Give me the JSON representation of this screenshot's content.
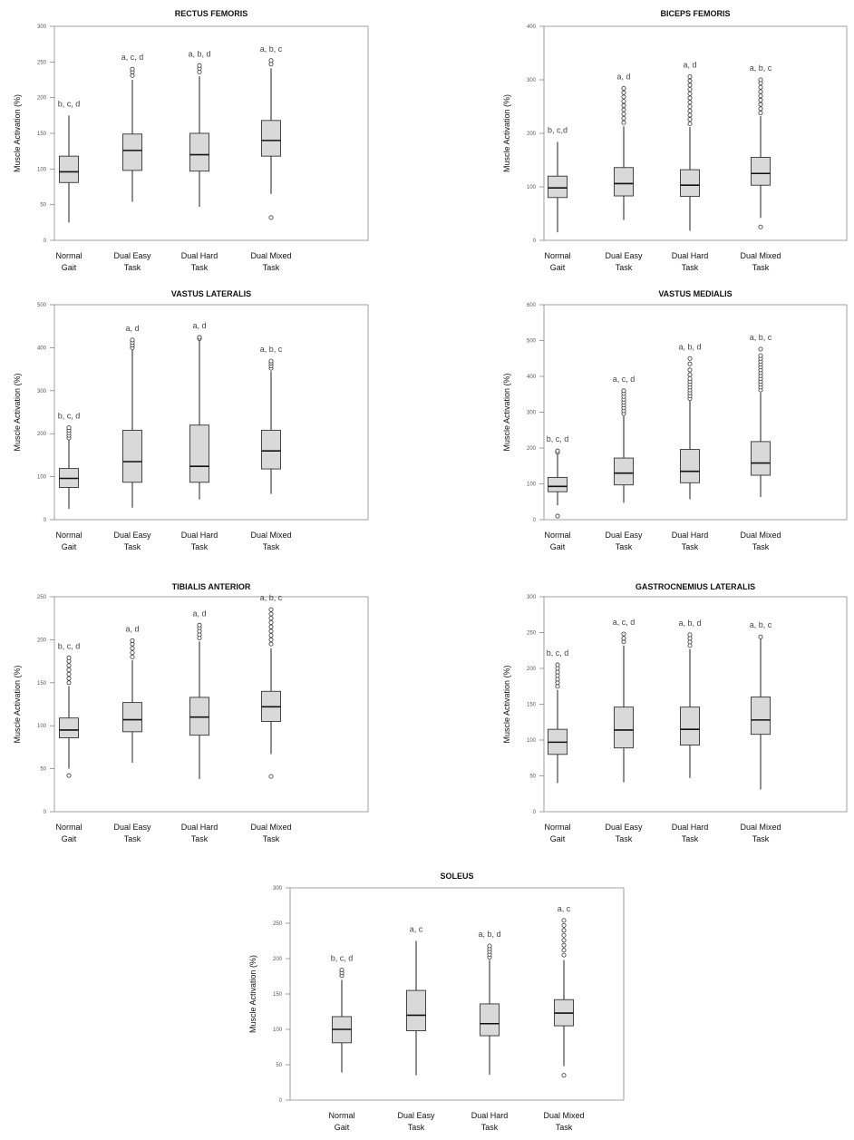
{
  "figure": {
    "background": "#ffffff",
    "box_fill": "#d9d9d9",
    "box_stroke": "#333333",
    "whisker_color": "#333333",
    "outlier_color": "#333333"
  },
  "chart_data": [
    {
      "type": "box",
      "title": "RECTUS FEMORIS",
      "xlabel": "",
      "ylabel": "Muscle Activation (%)",
      "categories": [
        [
          "Normal",
          "Gait"
        ],
        [
          "Dual Easy",
          "Task"
        ],
        [
          "Dual Hard",
          "Task"
        ],
        [
          "Dual Mixed",
          "Task"
        ]
      ],
      "ylim": [
        0,
        300
      ],
      "ticks": [
        0,
        50,
        100,
        150,
        200,
        250,
        300
      ],
      "boxes": [
        {
          "min": 25,
          "q1": 81,
          "median": 96,
          "q3": 118,
          "max": 175,
          "outliers": []
        },
        {
          "min": 54,
          "q1": 98,
          "median": 126,
          "q3": 149,
          "max": 225,
          "outliers": [
            231,
            236,
            240
          ]
        },
        {
          "min": 47,
          "q1": 97,
          "median": 120,
          "q3": 150,
          "max": 230,
          "outliers": [
            236,
            241,
            245
          ]
        },
        {
          "min": 65,
          "q1": 118,
          "median": 140,
          "q3": 168,
          "max": 241,
          "outliers": [
            247,
            252,
            32
          ]
        }
      ],
      "annotations": [
        "b, c, d",
        "a, c, d",
        "a, b, d",
        "a, b, c"
      ]
    },
    {
      "type": "box",
      "title": "BICEPS FEMORIS",
      "xlabel": "",
      "ylabel": "Muscle Activation (%)",
      "categories": [
        [
          "Normal",
          "Gait"
        ],
        [
          "Dual Easy",
          "Task"
        ],
        [
          "Dual Hard",
          "Task"
        ],
        [
          "Dual Mixed",
          "Task"
        ]
      ],
      "ylim": [
        0,
        400
      ],
      "ticks": [
        0,
        100,
        200,
        300,
        400
      ],
      "boxes": [
        {
          "min": 15,
          "q1": 80,
          "median": 98,
          "q3": 120,
          "max": 184,
          "outliers": []
        },
        {
          "min": 38,
          "q1": 83,
          "median": 106,
          "q3": 136,
          "max": 213,
          "outliers": [
            220,
            228,
            236,
            244,
            252,
            260,
            268,
            276,
            284
          ]
        },
        {
          "min": 18,
          "q1": 82,
          "median": 103,
          "q3": 132,
          "max": 212,
          "outliers": [
            218,
            226,
            234,
            242,
            250,
            258,
            266,
            274,
            282,
            290,
            298,
            306
          ]
        },
        {
          "min": 42,
          "q1": 103,
          "median": 125,
          "q3": 155,
          "max": 232,
          "outliers": [
            238,
            246,
            254,
            262,
            270,
            278,
            286,
            294,
            300,
            25
          ]
        }
      ],
      "annotations": [
        "b, c,d",
        "a, d",
        "a, d",
        "a, b, c"
      ]
    },
    {
      "type": "box",
      "title": "VASTUS LATERALIS",
      "xlabel": "",
      "ylabel": "Muscle Activation (%)",
      "categories": [
        [
          "Normal",
          "Gait"
        ],
        [
          "Dual Easy",
          "Task"
        ],
        [
          "Dual Hard",
          "Task"
        ],
        [
          "Dual Mixed",
          "Task"
        ]
      ],
      "ylim": [
        0,
        500
      ],
      "ticks": [
        0,
        100,
        200,
        300,
        400,
        500
      ],
      "boxes": [
        {
          "min": 25,
          "q1": 75,
          "median": 96,
          "q3": 119,
          "max": 185,
          "outliers": [
            190,
            196,
            202,
            208,
            214
          ]
        },
        {
          "min": 28,
          "q1": 87,
          "median": 135,
          "q3": 208,
          "max": 395,
          "outliers": [
            400,
            406,
            412,
            418
          ]
        },
        {
          "min": 47,
          "q1": 87,
          "median": 124,
          "q3": 220,
          "max": 417,
          "outliers": [
            421,
            424
          ]
        },
        {
          "min": 60,
          "q1": 118,
          "median": 160,
          "q3": 208,
          "max": 345,
          "outliers": [
            352,
            358,
            364,
            369
          ]
        }
      ],
      "annotations": [
        "b, c, d",
        "a, d",
        "a, d",
        "a, b, c"
      ]
    },
    {
      "type": "box",
      "title": "VASTUS MEDIALIS",
      "xlabel": "",
      "ylabel": "Muscle Activation (%)",
      "categories": [
        [
          "Normal",
          "Gait"
        ],
        [
          "Dual Easy",
          "Task"
        ],
        [
          "Dual Hard",
          "Task"
        ],
        [
          "Dual Mixed",
          "Task"
        ]
      ],
      "ylim": [
        0,
        600
      ],
      "ticks": [
        0,
        100,
        200,
        300,
        400,
        500,
        600
      ],
      "boxes": [
        {
          "min": 40,
          "q1": 78,
          "median": 93,
          "q3": 118,
          "max": 185,
          "outliers": [
            188,
            192,
            10
          ]
        },
        {
          "min": 47,
          "q1": 97,
          "median": 130,
          "q3": 172,
          "max": 289,
          "outliers": [
            296,
            304,
            312,
            320,
            328,
            336,
            344,
            352,
            360
          ]
        },
        {
          "min": 57,
          "q1": 103,
          "median": 135,
          "q3": 196,
          "max": 332,
          "outliers": [
            338,
            346,
            354,
            362,
            370,
            378,
            386,
            394,
            405,
            418,
            435,
            450
          ]
        },
        {
          "min": 63,
          "q1": 124,
          "median": 158,
          "q3": 218,
          "max": 355,
          "outliers": [
            362,
            370,
            378,
            386,
            394,
            402,
            410,
            418,
            426,
            434,
            442,
            450,
            458,
            476
          ]
        }
      ],
      "annotations": [
        "b, c, d",
        "a, c, d",
        "a, b, d",
        "a, b, c"
      ]
    },
    {
      "type": "box",
      "title": "TIBIALIS ANTERIOR",
      "xlabel": "",
      "ylabel": "Muscle Activation (%)",
      "categories": [
        [
          "Normal",
          "Gait"
        ],
        [
          "Dual Easy",
          "Task"
        ],
        [
          "Dual Hard",
          "Task"
        ],
        [
          "Dual Mixed",
          "Task"
        ]
      ],
      "ylim": [
        0,
        250
      ],
      "ticks": [
        0,
        50,
        100,
        150,
        200,
        250
      ],
      "boxes": [
        {
          "min": 50,
          "q1": 86,
          "median": 95,
          "q3": 109,
          "max": 146,
          "outliers": [
            150,
            155,
            160,
            165,
            170,
            175,
            179,
            42
          ]
        },
        {
          "min": 57,
          "q1": 93,
          "median": 107,
          "q3": 127,
          "max": 176,
          "outliers": [
            180,
            185,
            190,
            195,
            199
          ]
        },
        {
          "min": 38,
          "q1": 89,
          "median": 110,
          "q3": 133,
          "max": 198,
          "outliers": [
            202,
            206,
            210,
            214,
            217
          ]
        },
        {
          "min": 67,
          "q1": 105,
          "median": 122,
          "q3": 140,
          "max": 190,
          "outliers": [
            195,
            200,
            205,
            210,
            215,
            220,
            225,
            230,
            235,
            41
          ]
        }
      ],
      "annotations": [
        "b, c, d",
        "a, d",
        "a, d",
        "a, b, c"
      ]
    },
    {
      "type": "box",
      "title": "GASTROCNEMIUS LATERALIS",
      "xlabel": "",
      "ylabel": "Muscle Activation (%)",
      "categories": [
        [
          "Normal",
          "Gait"
        ],
        [
          "Dual Easy",
          "Task"
        ],
        [
          "Dual Hard",
          "Task"
        ],
        [
          "Dual Mixed",
          "Task"
        ]
      ],
      "ylim": [
        0,
        300
      ],
      "ticks": [
        0,
        50,
        100,
        150,
        200,
        250,
        300
      ],
      "boxes": [
        {
          "min": 40,
          "q1": 80,
          "median": 97,
          "q3": 115,
          "max": 170,
          "outliers": [
            175,
            180,
            185,
            190,
            195,
            200,
            205
          ]
        },
        {
          "min": 41,
          "q1": 89,
          "median": 114,
          "q3": 146,
          "max": 232,
          "outliers": [
            237,
            242,
            248
          ]
        },
        {
          "min": 47,
          "q1": 93,
          "median": 115,
          "q3": 146,
          "max": 227,
          "outliers": [
            232,
            237,
            242,
            247
          ]
        },
        {
          "min": 31,
          "q1": 108,
          "median": 128,
          "q3": 160,
          "max": 242,
          "outliers": [
            244
          ]
        }
      ],
      "annotations": [
        "b, c, d",
        "a, c, d",
        "a, b, d",
        "a, b, c"
      ]
    },
    {
      "type": "box",
      "title": "SOLEUS",
      "xlabel": "",
      "ylabel": "Muscle Activation (%)",
      "categories": [
        [
          "Normal",
          "Gait"
        ],
        [
          "Dual Easy",
          "Task"
        ],
        [
          "Dual Hard",
          "Task"
        ],
        [
          "Dual Mixed",
          "Task"
        ]
      ],
      "ylim": [
        0,
        300
      ],
      "ticks": [
        0,
        50,
        100,
        150,
        200,
        250,
        300
      ],
      "boxes": [
        {
          "min": 39,
          "q1": 81,
          "median": 100,
          "q3": 118,
          "max": 170,
          "outliers": [
            176,
            180,
            184
          ]
        },
        {
          "min": 35,
          "q1": 98,
          "median": 120,
          "q3": 155,
          "max": 225,
          "outliers": []
        },
        {
          "min": 36,
          "q1": 91,
          "median": 108,
          "q3": 136,
          "max": 198,
          "outliers": [
            202,
            206,
            210,
            214,
            218
          ]
        },
        {
          "min": 48,
          "q1": 105,
          "median": 123,
          "q3": 142,
          "max": 198,
          "outliers": [
            205,
            212,
            219,
            226,
            233,
            240,
            247,
            254,
            35
          ]
        }
      ],
      "annotations": [
        "b, c, d",
        "a, c",
        "a, b, d",
        "a, c"
      ]
    }
  ]
}
